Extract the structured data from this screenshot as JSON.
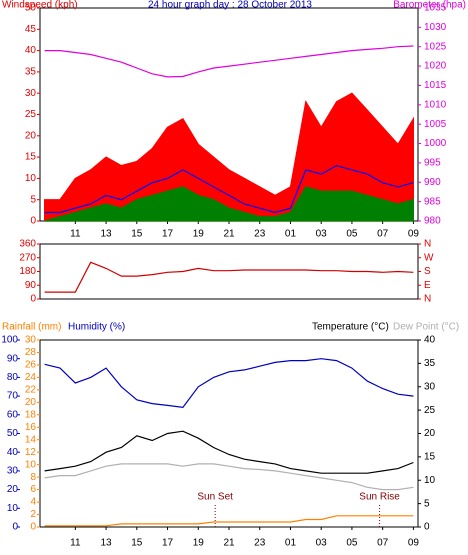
{
  "chart_data": [
    {
      "type": "line",
      "title": "24 hour graph day : 28 October 2013",
      "ylabel": "Windspeed (kph)",
      "y2label": "Barometer (hpa)",
      "ycolor": "#e00000",
      "y2color": "#e000e0",
      "title_color": "#0000c0",
      "xlim": [
        8.7,
        33.3
      ],
      "xticks": [
        11,
        13,
        15,
        17,
        19,
        21,
        23,
        {
          "value": 25,
          "label": "01"
        },
        {
          "value": 27,
          "label": "03"
        },
        {
          "value": 29,
          "label": "05"
        },
        {
          "value": 31,
          "label": "07"
        },
        {
          "value": 33,
          "label": "09"
        }
      ],
      "ylim": [
        0,
        50
      ],
      "yticks": [
        0,
        5,
        10,
        15,
        20,
        25,
        30,
        35,
        40,
        45,
        50
      ],
      "y2lim": [
        980,
        1035
      ],
      "y2ticks": [
        980,
        985,
        990,
        995,
        1000,
        1005,
        1010,
        1015,
        1020,
        1025,
        1030,
        1035
      ],
      "x": [
        9,
        10,
        11,
        12,
        13,
        14,
        15,
        16,
        17,
        18,
        19,
        20,
        21,
        22,
        23,
        24,
        25,
        26,
        27,
        28,
        29,
        30,
        31,
        32,
        33
      ],
      "series": [
        {
          "color": "#ff0000",
          "area": true,
          "values": [
            5,
            5,
            10,
            12,
            15,
            13,
            14,
            17,
            22,
            24,
            18,
            15,
            12,
            10,
            8,
            6,
            8,
            28,
            22,
            28,
            30,
            26,
            22,
            18,
            24
          ]
        },
        {
          "color": "#0000ff",
          "area": false,
          "values": [
            2,
            2,
            3,
            4,
            6,
            5,
            7,
            9,
            10,
            12,
            10,
            8,
            6,
            4,
            3,
            2,
            3,
            12,
            11,
            13,
            12,
            11,
            9,
            8,
            9
          ]
        },
        {
          "color": "#008000",
          "area": true,
          "values": [
            0,
            1,
            2,
            3,
            4,
            3,
            5,
            6,
            7,
            8,
            6,
            5,
            3,
            2,
            1,
            1,
            2,
            8,
            7,
            7,
            7,
            6,
            5,
            4,
            5
          ]
        },
        {
          "color": "#e000e0",
          "area": false,
          "axis": "y2",
          "values": [
            1024,
            1024,
            1023.5,
            1023,
            1022,
            1021,
            1019.5,
            1018,
            1017.2,
            1017.3,
            1018.5,
            1019.5,
            1020,
            1020.5,
            1021,
            1021.5,
            1022,
            1022.5,
            1023,
            1023.5,
            1024,
            1024.3,
            1024.6,
            1025,
            1025.2
          ]
        }
      ]
    },
    {
      "type": "line",
      "ycolor": "#e00000",
      "y2color": "#e00000",
      "xlim": [
        8.7,
        33.3
      ],
      "ylim": [
        0,
        360
      ],
      "yticks": [
        0,
        90,
        180,
        270,
        360
      ],
      "y2lim": [
        0,
        360
      ],
      "y2ticks": [
        {
          "value": 0,
          "label": "N"
        },
        {
          "value": 90,
          "label": "E"
        },
        {
          "value": 180,
          "label": "S"
        },
        {
          "value": 270,
          "label": "W"
        },
        {
          "value": 360,
          "label": "N"
        }
      ],
      "x": [
        9,
        10,
        11,
        12,
        13,
        14,
        15,
        16,
        17,
        18,
        19,
        20,
        21,
        22,
        23,
        24,
        25,
        26,
        27,
        28,
        29,
        30,
        31,
        32,
        33
      ],
      "series": [
        {
          "color": "#d00000",
          "area": false,
          "values": [
            45,
            45,
            45,
            240,
            200,
            150,
            150,
            160,
            175,
            180,
            200,
            185,
            185,
            190,
            190,
            190,
            190,
            190,
            185,
            185,
            180,
            180,
            175,
            180,
            175
          ]
        }
      ]
    },
    {
      "type": "line",
      "ycolor": "#0000c0",
      "y2color": "#000000",
      "y3color": "#ff8000",
      "xlim": [
        8.7,
        33.3
      ],
      "xticks": [
        11,
        13,
        15,
        17,
        19,
        21,
        23,
        {
          "value": 25,
          "label": "01"
        },
        {
          "value": 27,
          "label": "03"
        },
        {
          "value": 29,
          "label": "05"
        },
        {
          "value": 31,
          "label": "07"
        },
        {
          "value": 33,
          "label": "09"
        }
      ],
      "ylim": [
        0,
        100
      ],
      "yticks": [
        0,
        10,
        20,
        30,
        40,
        50,
        60,
        70,
        80,
        90,
        100
      ],
      "y2lim": [
        0,
        40
      ],
      "y2ticks": [
        0,
        5,
        10,
        15,
        20,
        25,
        30,
        35,
        40
      ],
      "y3lim": [
        0,
        30
      ],
      "y3ticks": [
        0,
        2,
        4,
        6,
        8,
        10,
        12,
        14,
        16,
        18,
        20,
        22,
        24,
        26,
        28,
        30
      ],
      "x": [
        9,
        10,
        11,
        12,
        13,
        14,
        15,
        16,
        17,
        18,
        19,
        20,
        21,
        22,
        23,
        24,
        25,
        26,
        27,
        28,
        29,
        30,
        31,
        32,
        33
      ],
      "annotations": [
        {
          "label": "Sun Set",
          "x": 20.1
        },
        {
          "label": "Sun Rise",
          "x": 30.8
        }
      ],
      "series": [
        {
          "name": "Rainfall (mm)",
          "color": "#ff8000",
          "area": false,
          "axis": "y3",
          "values": [
            0.2,
            0.2,
            0.2,
            0.2,
            0.2,
            0.5,
            0.5,
            0.5,
            0.5,
            0.5,
            0.5,
            0.8,
            0.8,
            0.8,
            0.8,
            0.8,
            0.8,
            1.2,
            1.2,
            1.8,
            1.8,
            1.8,
            1.8,
            1.8,
            1.8
          ]
        },
        {
          "name": "Humidity (%)",
          "color": "#0000c0",
          "area": false,
          "values": [
            87,
            85,
            77,
            80,
            85,
            75,
            68,
            66,
            65,
            64,
            75,
            80,
            83,
            84,
            86,
            88,
            89,
            89,
            90,
            89,
            85,
            78,
            74,
            71,
            70
          ]
        },
        {
          "name": "Temperature (°C)",
          "color": "#000000",
          "area": false,
          "axis": "y2",
          "values": [
            12,
            12.5,
            13,
            14,
            16,
            17,
            19.5,
            18.5,
            20,
            20.5,
            19,
            17,
            15.5,
            14.5,
            14,
            13.5,
            12.5,
            12,
            11.5,
            11.5,
            11.5,
            11.5,
            12,
            12.5,
            13.8
          ]
        },
        {
          "name": "Dew Point (°C)",
          "color": "#b0b0b0",
          "area": false,
          "axis": "y2",
          "values": [
            10.5,
            11,
            11,
            12,
            13,
            13.5,
            13.5,
            13.5,
            13.5,
            13,
            13.5,
            13.5,
            13,
            12.5,
            12.3,
            12,
            11.5,
            11,
            10.5,
            10,
            9.5,
            8.5,
            8,
            8,
            8.5
          ]
        }
      ]
    }
  ]
}
